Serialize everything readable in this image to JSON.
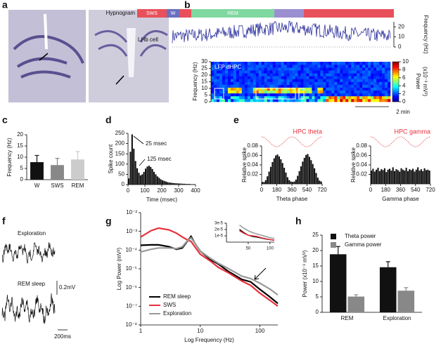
{
  "panel_labels": [
    "a",
    "b",
    "c",
    "d",
    "e",
    "f",
    "g",
    "h"
  ],
  "panel_b": {
    "hypnogram_label": "Hypnogram",
    "stages": [
      "SWS",
      "W",
      "REM"
    ],
    "cell_label": "LHb cell",
    "rate_axis": {
      "label": "Frequency (Hz)",
      "lim": [
        0,
        25
      ],
      "ticks": [
        0,
        10,
        20
      ]
    },
    "lfp_label": "LFP dHPC",
    "spectrogram_axis": {
      "label": "Frequency (Hz)",
      "lim": [
        0,
        30
      ],
      "ticks": [
        0,
        5,
        10,
        15,
        20,
        25,
        30
      ]
    },
    "colorbar": {
      "label": [
        "Power",
        "(x10⁻³ mV²)"
      ],
      "lim": [
        0,
        10
      ],
      "ticks": [
        0,
        2,
        4,
        6,
        8,
        10
      ]
    },
    "scale_bar": "2 min"
  },
  "panel_f": {
    "traces": [
      "Exploration",
      "REM sleep"
    ],
    "scale_y": "0.2mV",
    "scale_x": "200ms"
  },
  "chart_data": [
    {
      "type": "bar",
      "y_label": "Frequency (Hz)",
      "categories": [
        "W",
        "SWS",
        "REM"
      ],
      "values": [
        7.8,
        6.5,
        9.0
      ],
      "errors": [
        3.0,
        3.0,
        3.5
      ],
      "colors": [
        "#111111",
        "#888888",
        "#cccccc"
      ],
      "ylim": [
        0,
        20
      ],
      "yticks": [
        0,
        5,
        10,
        15,
        20
      ]
    },
    {
      "type": "histogram",
      "x_label": "Time (msec)",
      "y_label": "Spike count",
      "color": "#111111",
      "annotations": [
        "25 msec",
        "125 msec"
      ],
      "bins": [
        0,
        10,
        20,
        30,
        40,
        50,
        60,
        70,
        80,
        90,
        100,
        110,
        120,
        130,
        140,
        150,
        160,
        170,
        180,
        190,
        200,
        210,
        220,
        230,
        240,
        250,
        260,
        270,
        280,
        290,
        300,
        310,
        320,
        330,
        340,
        350,
        360,
        370,
        380,
        390,
        400
      ],
      "values": [
        30,
        160,
        245,
        175,
        115,
        80,
        58,
        45,
        50,
        62,
        78,
        88,
        92,
        86,
        76,
        62,
        50,
        40,
        33,
        26,
        21,
        18,
        15,
        12,
        10,
        9,
        8,
        7,
        6,
        6,
        5,
        5,
        4,
        4,
        3,
        3,
        3,
        2,
        2,
        2
      ],
      "xlim": [
        0,
        400
      ],
      "xticks": [
        0,
        100,
        200,
        300,
        400
      ],
      "ylim": [
        0,
        250
      ],
      "yticks": [
        0,
        50,
        100,
        150,
        200,
        250
      ]
    },
    {
      "type": "histogram",
      "title": "HPC theta",
      "x_label": "Theta phase",
      "y_label": "Relative spike",
      "color": "#111111",
      "title_color": "#e8303a",
      "bins": [
        0,
        20,
        40,
        60,
        80,
        100,
        120,
        140,
        160,
        180,
        200,
        220,
        240,
        260,
        280,
        300,
        320,
        340,
        360,
        380,
        400,
        420,
        440,
        460,
        480,
        500,
        520,
        540,
        560,
        580,
        600,
        620,
        640,
        660,
        680,
        700,
        720
      ],
      "values": [
        0.004,
        0.004,
        0.008,
        0.016,
        0.026,
        0.036,
        0.046,
        0.054,
        0.06,
        0.062,
        0.058,
        0.052,
        0.044,
        0.034,
        0.024,
        0.014,
        0.008,
        0.005,
        0.004,
        0.005,
        0.009,
        0.017,
        0.027,
        0.037,
        0.047,
        0.055,
        0.061,
        0.063,
        0.057,
        0.05,
        0.042,
        0.033,
        0.023,
        0.013,
        0.007,
        0.005
      ],
      "xlim": [
        0,
        720
      ],
      "xticks": [
        0,
        180,
        360,
        540,
        720
      ],
      "ylim": [
        0,
        0.08
      ],
      "yticks": [
        0.02,
        0.04,
        0.06,
        0.08
      ]
    },
    {
      "type": "histogram",
      "title": "HPC gamma",
      "x_label": "Gamma phase",
      "y_label": "Relative spike",
      "color": "#111111",
      "title_color": "#e8303a",
      "bins": [
        0,
        20,
        40,
        60,
        80,
        100,
        120,
        140,
        160,
        180,
        200,
        220,
        240,
        260,
        280,
        300,
        320,
        340,
        360,
        380,
        400,
        420,
        440,
        460,
        480,
        500,
        520,
        540,
        560,
        580,
        600,
        620,
        640,
        660,
        680,
        700,
        720
      ],
      "values": [
        0.028,
        0.032,
        0.026,
        0.03,
        0.034,
        0.027,
        0.031,
        0.029,
        0.033,
        0.025,
        0.03,
        0.032,
        0.028,
        0.035,
        0.027,
        0.031,
        0.029,
        0.026,
        0.033,
        0.03,
        0.028,
        0.034,
        0.027,
        0.031,
        0.029,
        0.032,
        0.026,
        0.03,
        0.035,
        0.028,
        0.031,
        0.027,
        0.033,
        0.029,
        0.03,
        0.028
      ],
      "xlim": [
        0,
        720
      ],
      "xticks": [
        0,
        180,
        360,
        540,
        720
      ],
      "ylim": [
        0,
        0.08
      ],
      "yticks": [
        0.02,
        0.04,
        0.06,
        0.08
      ]
    },
    {
      "type": "line",
      "x_label": "Log Frequency (Hz)",
      "y_label": "Log Power (mV²)",
      "xscale": "log",
      "yscale": "log",
      "legend": "bottom-left",
      "x": [
        1,
        1.5,
        2,
        3,
        4,
        5,
        6,
        7,
        8,
        10,
        15,
        20,
        30,
        50,
        70,
        100,
        150,
        200
      ],
      "series": [
        {
          "name": "REM sleep",
          "color": "#000000",
          "values": [
            0.00018,
            0.00019,
            0.00019,
            0.00015,
            0.00011,
            0.00013,
            0.00028,
            0.00054,
            0.00025,
            9e-05,
            3e-05,
            1.8e-05,
            7e-06,
            2.7e-06,
            2e-06,
            8e-07,
            3e-07,
            1.4e-07
          ]
        },
        {
          "name": "SWS",
          "color": "#e8303a",
          "values": [
            0.0005,
            0.0011,
            0.0015,
            0.0012,
            0.0008,
            0.0005,
            0.00036,
            0.00029,
            0.00016,
            6e-05,
            2.5e-05,
            1.2e-05,
            6e-06,
            2.2e-06,
            1.3e-06,
            5e-07,
            2e-07,
            1e-07
          ]
        },
        {
          "name": "Exploration",
          "color": "#999999",
          "values": [
            8e-05,
            0.00011,
            0.00013,
            0.00013,
            0.00012,
            0.00015,
            0.0003,
            0.00045,
            0.00025,
            9e-05,
            3.5e-05,
            2e-05,
            1e-05,
            4e-06,
            3e-06,
            1.7e-06,
            8e-07,
            4e-07
          ]
        }
      ],
      "xlim": [
        1,
        200
      ],
      "xticks": [
        1,
        10,
        100
      ],
      "ylim": [
        1e-08,
        0.01
      ],
      "yticks": [
        {
          "value": 1e-08,
          "label": "10⁻⁸"
        },
        {
          "value": 1e-07,
          "label": "10⁻⁷"
        },
        {
          "value": 1e-06,
          "label": "10⁻⁶"
        },
        {
          "value": 1e-05,
          "label": "10⁻⁵"
        },
        {
          "value": 0.0001,
          "label": "10⁻⁴"
        },
        {
          "value": 0.001,
          "label": "10⁻³"
        },
        {
          "value": 0.01,
          "label": "10⁻²"
        }
      ]
    },
    {
      "type": "line",
      "x": [
        30,
        40,
        50,
        60,
        70,
        80,
        90,
        100,
        110
      ],
      "series": [
        {
          "color": "#000000",
          "values": [
            2e-05,
            1.5e-05,
            1.1e-05,
            9e-06,
            8e-06,
            6.5e-06,
            5e-06,
            4e-06,
            3e-06
          ]
        },
        {
          "color": "#e8303a",
          "values": [
            1.8e-05,
            1.4e-05,
            1.1e-05,
            1e-05,
            9e-06,
            7e-06,
            5.5e-06,
            4e-06,
            3e-06
          ]
        },
        {
          "color": "#999999",
          "values": [
            2.7e-05,
            2.2e-05,
            1.8e-05,
            1.5e-05,
            1.3e-05,
            1.1e-05,
            9e-06,
            7e-06,
            6e-06
          ]
        }
      ],
      "xlim": [
        0,
        110
      ],
      "xticks": [
        50,
        100
      ],
      "ylim": [
        0,
        3e-05
      ],
      "yticks": [
        {
          "value": 1e-05,
          "label": "1e-5"
        },
        {
          "value": 2e-05,
          "label": "2e-5"
        },
        {
          "value": 3e-05,
          "label": "3e-5"
        }
      ]
    },
    {
      "type": "bar",
      "y_label": "Power (x10⁻³ mV²)",
      "categories": [
        "REM",
        "Exploration"
      ],
      "legend": "top-left",
      "series": [
        {
          "name": "Theta power",
          "color": "#111111",
          "values": [
            18.8,
            14.6
          ],
          "errors": [
            2.5,
            1.8
          ]
        },
        {
          "name": "Gamma power",
          "color": "#888888",
          "values": [
            5.1,
            7.0
          ],
          "errors": [
            0.6,
            1.0
          ]
        }
      ],
      "ylim": [
        0,
        25
      ],
      "yticks": [
        0,
        5,
        10,
        15,
        20,
        25
      ]
    }
  ]
}
